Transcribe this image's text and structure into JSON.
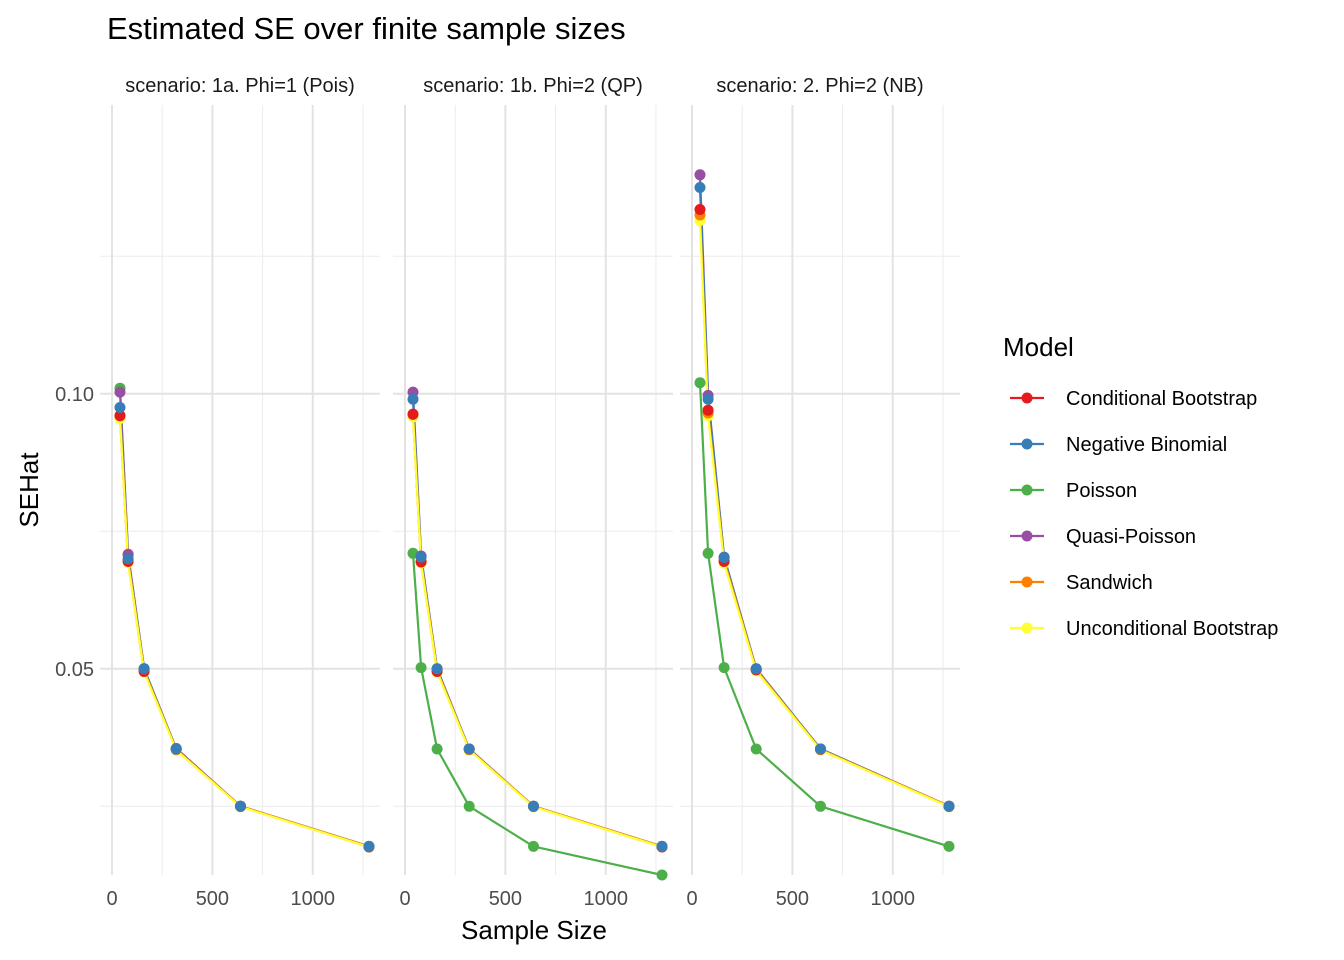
{
  "chart_data": {
    "type": "line",
    "title": "Estimated SE over finite sample sizes",
    "xlabel": "Sample Size",
    "ylabel": "SEHat",
    "xlim": [
      0,
      1300
    ],
    "ylim": [
      0.0125,
      0.1525
    ],
    "x_ticks": [
      0,
      500,
      1000
    ],
    "y_ticks": [
      0.05,
      0.1
    ],
    "x_tick_labels": [
      "0",
      "500",
      "1000"
    ],
    "y_tick_labels": [
      "0.05",
      "0.10"
    ],
    "grid": true,
    "legend": {
      "title": "Model",
      "position": "right"
    },
    "series_styles": [
      {
        "name": "Conditional Bootstrap",
        "color": "#E41A1C"
      },
      {
        "name": "Negative Binomial",
        "color": "#377EB8"
      },
      {
        "name": "Poisson",
        "color": "#4DAF4A"
      },
      {
        "name": "Quasi-Poisson",
        "color": "#984EA3"
      },
      {
        "name": "Sandwich",
        "color": "#FF7F00"
      },
      {
        "name": "Unconditional Bootstrap",
        "color": "#FFFF33"
      }
    ],
    "facets": [
      {
        "label": "scenario: 1a. Phi=1 (Pois)",
        "x": [
          40,
          80,
          160,
          320,
          640,
          1280
        ],
        "series": [
          {
            "name": "Conditional Bootstrap",
            "values": [
              0.096,
              0.0695,
              0.0495,
              0.0355,
              0.025,
              0.0176
            ]
          },
          {
            "name": "Negative Binomial",
            "values": [
              0.0975,
              0.07,
              0.05,
              0.0354,
              0.025,
              0.0177
            ]
          },
          {
            "name": "Poisson",
            "values": [
              0.101,
              0.0707,
              0.05,
              0.0354,
              0.025,
              0.0177
            ]
          },
          {
            "name": "Quasi-Poisson",
            "values": [
              0.1003,
              0.0708,
              0.05,
              0.0354,
              0.025,
              0.0177
            ]
          },
          {
            "name": "Sandwich",
            "values": [
              0.096,
              0.0697,
              0.0497,
              0.0353,
              0.025,
              0.0177
            ]
          },
          {
            "name": "Unconditional Bootstrap",
            "values": [
              0.0955,
              0.0693,
              0.0494,
              0.0352,
              0.0249,
              0.0176
            ]
          }
        ]
      },
      {
        "label": "scenario: 1b. Phi=2 (QP)",
        "x": [
          40,
          80,
          160,
          320,
          640,
          1280
        ],
        "series": [
          {
            "name": "Conditional Bootstrap",
            "values": [
              0.0963,
              0.0694,
              0.0495,
              0.0354,
              0.025,
              0.0176
            ]
          },
          {
            "name": "Negative Binomial",
            "values": [
              0.099,
              0.0703,
              0.05,
              0.0354,
              0.025,
              0.0177
            ]
          },
          {
            "name": "Poisson",
            "values": [
              0.071,
              0.0502,
              0.0354,
              0.025,
              0.0177,
              0.0125
            ]
          },
          {
            "name": "Quasi-Poisson",
            "values": [
              0.1003,
              0.0705,
              0.05,
              0.0354,
              0.025,
              0.0177
            ]
          },
          {
            "name": "Sandwich",
            "values": [
              0.0962,
              0.0696,
              0.0497,
              0.0353,
              0.025,
              0.0177
            ]
          },
          {
            "name": "Unconditional Bootstrap",
            "values": [
              0.0958,
              0.0692,
              0.0494,
              0.0352,
              0.0249,
              0.0176
            ]
          }
        ]
      },
      {
        "label": "scenario: 2. Phi=2 (NB)",
        "x": [
          40,
          80,
          160,
          320,
          640,
          1280
        ],
        "series": [
          {
            "name": "Conditional Bootstrap",
            "values": [
              0.1335,
              0.097,
              0.0695,
              0.0498,
              0.0354,
              0.025
            ]
          },
          {
            "name": "Negative Binomial",
            "values": [
              0.1375,
              0.099,
              0.0702,
              0.05,
              0.0354,
              0.025
            ]
          },
          {
            "name": "Poisson",
            "values": [
              0.102,
              0.071,
              0.0502,
              0.0354,
              0.025,
              0.0177
            ]
          },
          {
            "name": "Quasi-Poisson",
            "values": [
              0.1398,
              0.0997,
              0.0703,
              0.05,
              0.0354,
              0.025
            ]
          },
          {
            "name": "Sandwich",
            "values": [
              0.1325,
              0.0965,
              0.0697,
              0.0498,
              0.0353,
              0.025
            ]
          },
          {
            "name": "Unconditional Bootstrap",
            "values": [
              0.1315,
              0.096,
              0.0692,
              0.0496,
              0.0352,
              0.0249
            ]
          }
        ]
      }
    ]
  }
}
